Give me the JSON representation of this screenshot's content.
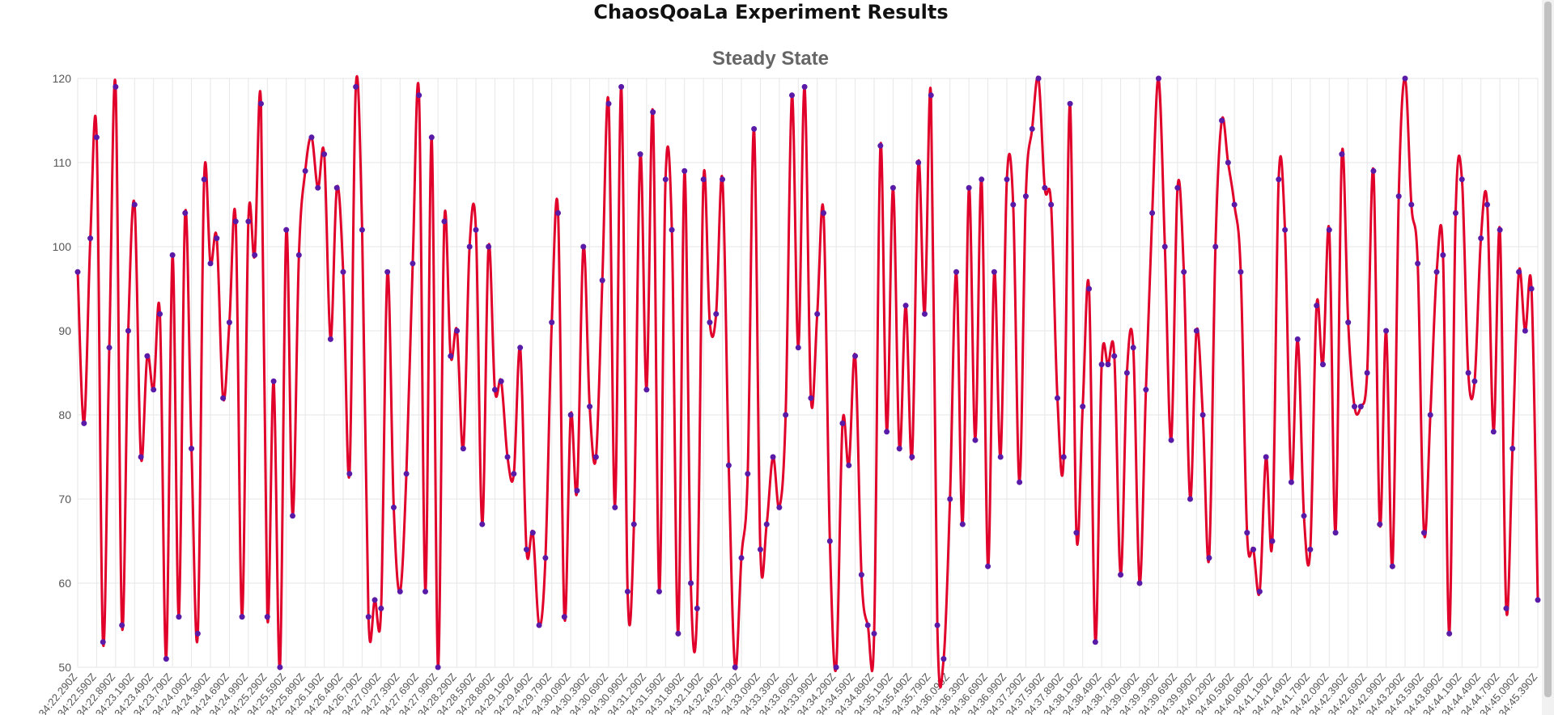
{
  "page": {
    "title": "ChaosQoaLa Experiment Results"
  },
  "colors": {
    "line": "#e0002a",
    "point": "#5a1aa8",
    "grid": "#e6e6e6",
    "title": "#666666",
    "tick": "#555555"
  },
  "chart_data": {
    "type": "line",
    "title": "Steady State",
    "xlabel": "",
    "ylabel": "",
    "ylim": [
      50,
      120
    ],
    "y_ticks": [
      50,
      60,
      70,
      80,
      90,
      100,
      110,
      120
    ],
    "grid": true,
    "legend": "none",
    "x_tick_labels": [
      ":34:22.290Z",
      ":34:22.590Z",
      ":34:22.890Z",
      ":34:23.190Z",
      ":34:23.490Z",
      ":34:23.790Z",
      ":34:24.090Z",
      ":34:24.390Z",
      ":34:24.690Z",
      ":34:24.990Z",
      ":34:25.290Z",
      ":34:25.590Z",
      ":34:25.890Z",
      ":34:26.190Z",
      ":34:26.490Z",
      ":34:26.790Z",
      ":34:27.090Z",
      ":34:27.390Z",
      ":34:27.690Z",
      ":34:27.990Z",
      ":34:28.290Z",
      ":34:28.590Z",
      ":34:28.890Z",
      ":34:29.190Z",
      ":34:29.490Z",
      ":34:29.790Z",
      ":34:30.090Z",
      ":34:30.390Z",
      ":34:30.690Z",
      ":34:30.990Z",
      ":34:31.290Z",
      ":34:31.590Z",
      ":34:31.890Z",
      ":34:32.190Z",
      ":34:32.490Z",
      ":34:32.790Z",
      ":34:33.090Z",
      ":34:33.390Z",
      ":34:33.690Z",
      ":34:33.990Z",
      ":34:34.290Z",
      ":34:34.590Z",
      ":34:34.890Z",
      ":34:35.190Z",
      ":34:35.490Z",
      ":34:35.790Z",
      ":34:36.090Z",
      ":34:36.390Z",
      ":34:36.690Z",
      ":34:36.990Z",
      ":34:37.290Z",
      ":34:37.590Z",
      ":34:37.890Z",
      ":34:38.190Z",
      ":34:38.490Z",
      ":34:38.790Z",
      ":34:39.090Z",
      ":34:39.390Z",
      ":34:39.690Z",
      ":34:39.990Z",
      ":34:40.290Z",
      ":34:40.590Z",
      ":34:40.890Z",
      ":34:41.190Z",
      ":34:41.490Z",
      ":34:41.790Z",
      ":34:42.090Z",
      ":34:42.390Z",
      ":34:42.690Z",
      ":34:42.990Z",
      ":34:43.290Z",
      ":34:43.590Z",
      ":34:43.890Z",
      ":34:44.190Z",
      ":34:44.490Z",
      ":34:44.790Z",
      ":34:45.090Z",
      ":34:45.390Z"
    ],
    "values": [
      97,
      79,
      101,
      113,
      53,
      88,
      119,
      55,
      90,
      105,
      75,
      87,
      83,
      92,
      51,
      99,
      56,
      104,
      76,
      54,
      108,
      98,
      101,
      82,
      91,
      103,
      56,
      103,
      99,
      117,
      56,
      84,
      50,
      102,
      68,
      99,
      109,
      113,
      107,
      111,
      89,
      107,
      97,
      73,
      119,
      102,
      56,
      58,
      57,
      97,
      69,
      59,
      73,
      98,
      118,
      59,
      113,
      50,
      103,
      87,
      90,
      76,
      100,
      102,
      67,
      100,
      83,
      84,
      75,
      73,
      88,
      64,
      66,
      55,
      63,
      91,
      104,
      56,
      80,
      71,
      100,
      81,
      75,
      96,
      117,
      69,
      119,
      59,
      67,
      111,
      83,
      116,
      59,
      108,
      102,
      54,
      109,
      60,
      57,
      108,
      91,
      92,
      108,
      74,
      50,
      63,
      73,
      114,
      64,
      67,
      75,
      69,
      80,
      118,
      88,
      119,
      82,
      92,
      104,
      65,
      50,
      79,
      74,
      87,
      61,
      55,
      54,
      112,
      78,
      107,
      76,
      93,
      75,
      110,
      92,
      118,
      55,
      51,
      70,
      97,
      67,
      107,
      77,
      108,
      62,
      97,
      75,
      108,
      105,
      72,
      106,
      114,
      120,
      107,
      105,
      82,
      75,
      117,
      66,
      81,
      95,
      53,
      86,
      86,
      87,
      61,
      85,
      88,
      60,
      83,
      104,
      120,
      100,
      77,
      107,
      97,
      70,
      90,
      80,
      63,
      100,
      115,
      110,
      105,
      97,
      66,
      64,
      59,
      75,
      65,
      108,
      102,
      72,
      89,
      68,
      64,
      93,
      86,
      102,
      66,
      111,
      91,
      81,
      81,
      85,
      109,
      67,
      90,
      62,
      106,
      120,
      105,
      98,
      66,
      80,
      97,
      99,
      54,
      104,
      108,
      85,
      84,
      101,
      105,
      78,
      102,
      57,
      76,
      97,
      90,
      95,
      58
    ]
  }
}
